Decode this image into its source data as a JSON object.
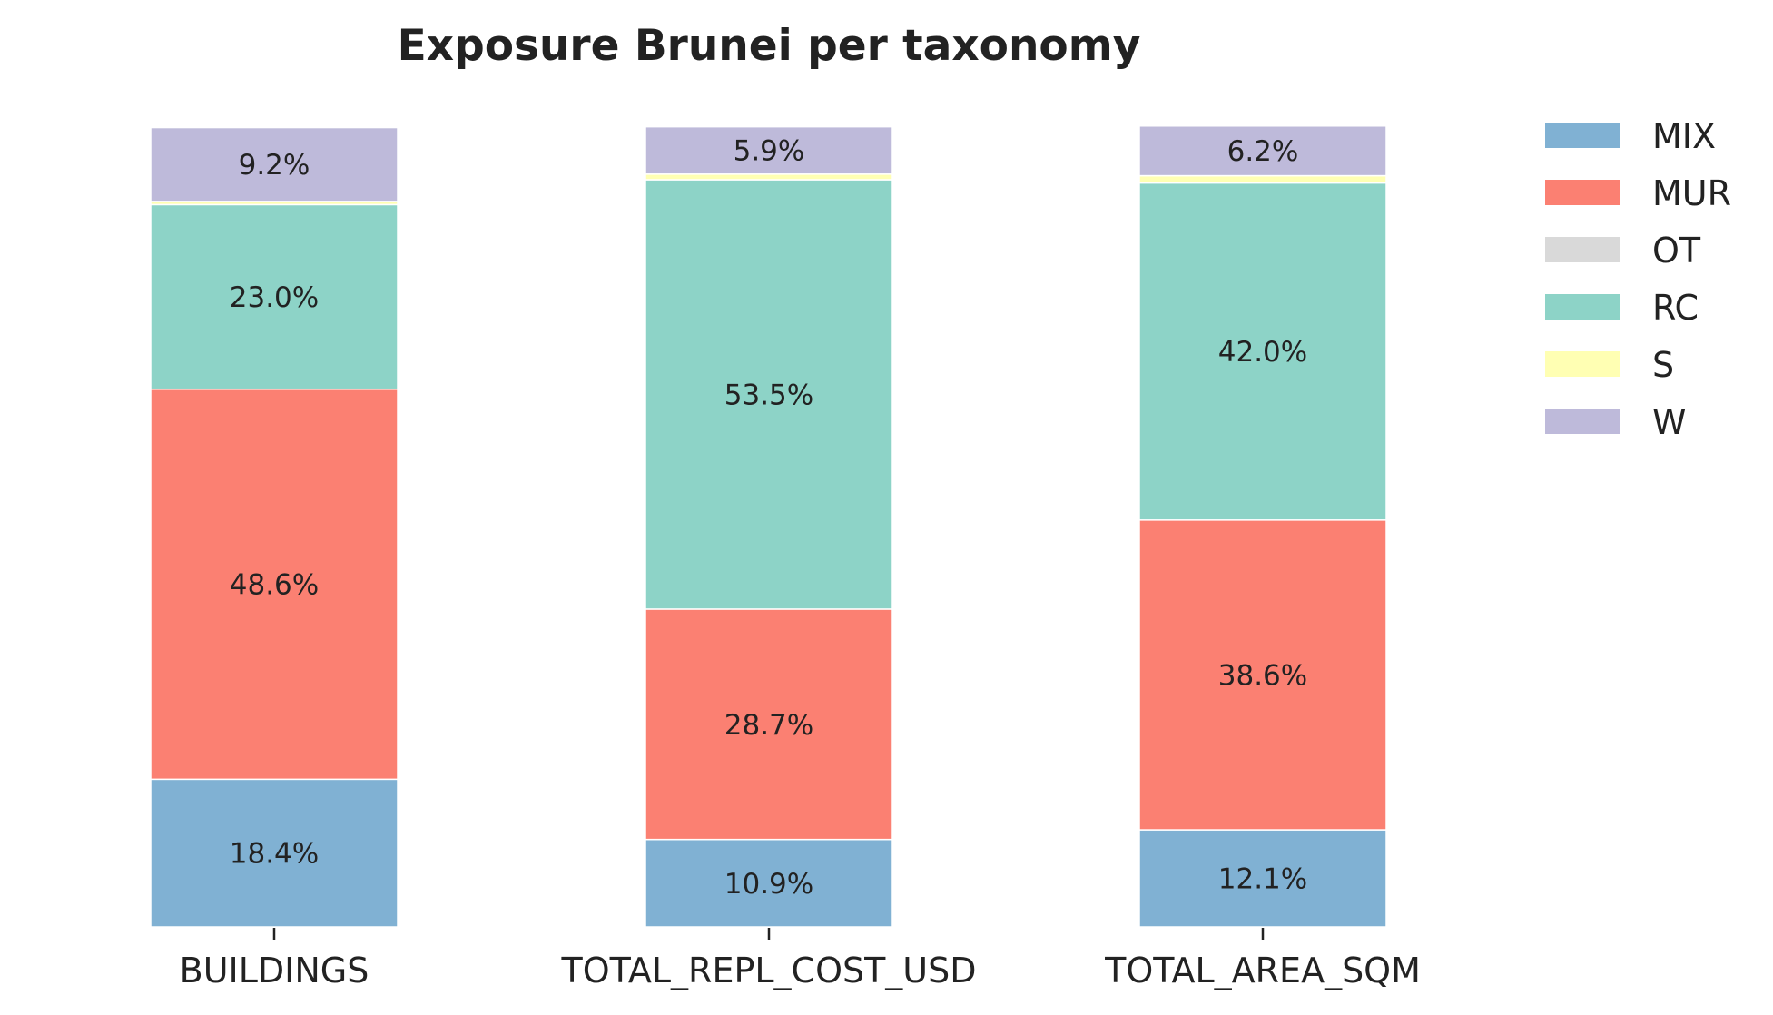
{
  "chart_data": {
    "type": "bar",
    "stacked": true,
    "normalized_percent": true,
    "title": "Exposure Brunei per taxonomy",
    "xlabel": "",
    "ylabel": "",
    "categories": [
      "BUILDINGS",
      "TOTAL_REPL_COST_USD",
      "TOTAL_AREA_SQM"
    ],
    "ylim": [
      0,
      100
    ],
    "grid": false,
    "legend_position": "top-right",
    "series": [
      {
        "name": "MIX",
        "color": "#80b1d3",
        "values": [
          18.4,
          10.9,
          12.1
        ],
        "labels": [
          "18.4%",
          "10.9%",
          "12.1%"
        ]
      },
      {
        "name": "MUR",
        "color": "#fb8072",
        "values": [
          48.6,
          28.7,
          38.6
        ],
        "labels": [
          "48.6%",
          "28.7%",
          "38.6%"
        ]
      },
      {
        "name": "OT",
        "color": "#d9d9d9",
        "values": [
          0.0,
          0.0,
          0.0
        ],
        "labels": [
          "",
          "",
          ""
        ]
      },
      {
        "name": "RC",
        "color": "#8dd3c7",
        "values": [
          23.0,
          53.5,
          42.0
        ],
        "labels": [
          "23.0%",
          "53.5%",
          "42.0%"
        ]
      },
      {
        "name": "S",
        "color": "#ffffb3",
        "values": [
          0.4,
          0.7,
          0.9
        ],
        "labels": [
          "",
          "",
          ""
        ]
      },
      {
        "name": "W",
        "color": "#bebada",
        "values": [
          9.2,
          5.9,
          6.2
        ],
        "labels": [
          "9.2%",
          "5.9%",
          "6.2%"
        ]
      }
    ]
  }
}
